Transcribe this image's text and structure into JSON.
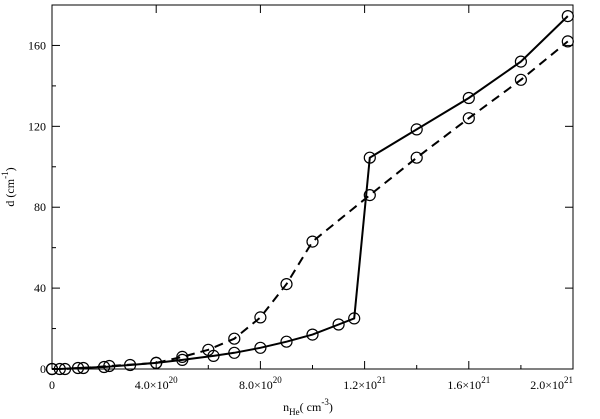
{
  "chart_data": {
    "type": "line",
    "title": "",
    "xlabel": {
      "base": "n",
      "sub": "He",
      "rest": "( cm",
      "sup": "-3",
      "close": ")"
    },
    "ylabel": {
      "base": "d (cm",
      "sup": "-1",
      "close": ")"
    },
    "xlim": [
      0,
      2e+21
    ],
    "ylim": [
      0,
      180
    ],
    "grid": false,
    "legend": "none",
    "x_ticks": [
      {
        "value": 0,
        "mant": "0",
        "exp": ""
      },
      {
        "value": 4e+20,
        "mant": "4.0×10",
        "exp": "20"
      },
      {
        "value": 8e+20,
        "mant": "8.0×10",
        "exp": "20"
      },
      {
        "value": 1.2e+21,
        "mant": "1.2×10",
        "exp": "21"
      },
      {
        "value": 1.6e+21,
        "mant": "1.6×10",
        "exp": "21"
      },
      {
        "value": 2e+21,
        "mant": "2.0×10",
        "exp": "21"
      }
    ],
    "y_ticks": [
      {
        "value": 0,
        "label": "0"
      },
      {
        "value": 40,
        "label": "40"
      },
      {
        "value": 80,
        "label": "80"
      },
      {
        "value": 120,
        "label": "120"
      },
      {
        "value": 160,
        "label": "160"
      }
    ],
    "series": [
      {
        "style": "solid",
        "color": "#000000",
        "marker": "open-circle",
        "points": [
          [
            0,
            0
          ],
          [
            3e+19,
            0
          ],
          [
            1e+20,
            0.5
          ],
          [
            2e+20,
            1.0
          ],
          [
            3e+20,
            2.0
          ],
          [
            4e+20,
            3.0
          ],
          [
            5e+20,
            4.5
          ],
          [
            6.2e+20,
            6.5
          ],
          [
            7e+20,
            8.0
          ],
          [
            8e+20,
            10.5
          ],
          [
            9e+20,
            13.5
          ],
          [
            1e+21,
            17.0
          ],
          [
            1.1e+21,
            22.0
          ],
          [
            1.16e+21,
            25.0
          ],
          [
            1.22e+21,
            104.5
          ],
          [
            1.4e+21,
            118.5
          ],
          [
            1.6e+21,
            134.0
          ],
          [
            1.8e+21,
            152.0
          ],
          [
            1.98e+21,
            174.5
          ]
        ]
      },
      {
        "style": "dashed",
        "color": "#000000",
        "marker": "open-circle",
        "points": [
          [
            0,
            0
          ],
          [
            5e+19,
            0
          ],
          [
            1.2e+20,
            0.5
          ],
          [
            2.2e+20,
            1.5
          ],
          [
            4e+20,
            3.0
          ],
          [
            5e+20,
            6.0
          ],
          [
            6e+20,
            9.5
          ],
          [
            7e+20,
            15.0
          ],
          [
            8e+20,
            25.5
          ],
          [
            9e+20,
            42.0
          ],
          [
            1e+21,
            63.0
          ],
          [
            1.22e+21,
            86.0
          ],
          [
            1.4e+21,
            104.5
          ],
          [
            1.6e+21,
            124.0
          ],
          [
            1.8e+21,
            143.0
          ],
          [
            1.98e+21,
            162.0
          ]
        ]
      }
    ]
  }
}
